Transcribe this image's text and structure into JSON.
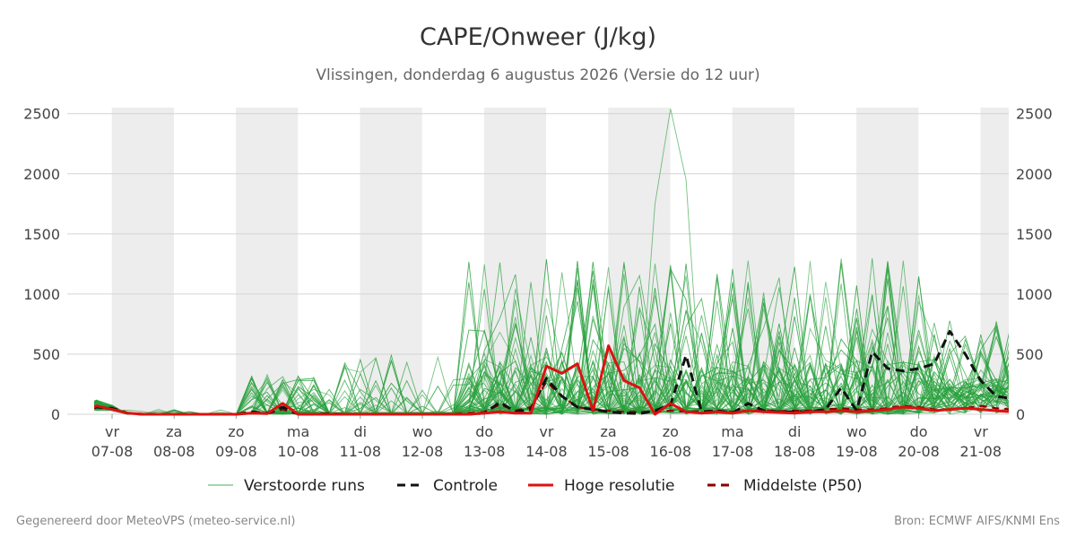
{
  "header": {
    "title": "CAPE/Onweer (J/kg)",
    "subtitle": "Vlissingen, donderdag  6 augustus 2026 (Versie do 12 uur)"
  },
  "footer": {
    "left": "Gegenereerd door MeteoVPS (meteo-service.nl)",
    "right": "Bron: ECMWF AIFS/KNMI Ens"
  },
  "legend": [
    {
      "label": "Verstoorde runs",
      "color": "#4aae5a",
      "style": "thin"
    },
    {
      "label": "Controle",
      "color": "#111111",
      "style": "dash"
    },
    {
      "label": "Hoge resolutie",
      "color": "#dd1111",
      "style": "solid"
    },
    {
      "label": "Middelste (P50)",
      "color": "#8b0000",
      "style": "dash"
    }
  ],
  "chart_data": {
    "type": "line",
    "ylim": [
      0,
      2550
    ],
    "yticks": [
      0,
      500,
      1000,
      1500,
      2000,
      2500
    ],
    "x_range_days": [
      "2026-08-06 12:00",
      "2026-08-21 12:00"
    ],
    "day_labels": [
      {
        "day": "vr",
        "date": "07-08"
      },
      {
        "day": "za",
        "date": "08-08"
      },
      {
        "day": "zo",
        "date": "09-08"
      },
      {
        "day": "ma",
        "date": "10-08"
      },
      {
        "day": "di",
        "date": "11-08"
      },
      {
        "day": "wo",
        "date": "12-08"
      },
      {
        "day": "do",
        "date": "13-08"
      },
      {
        "day": "vr",
        "date": "14-08"
      },
      {
        "day": "za",
        "date": "15-08"
      },
      {
        "day": "zo",
        "date": "16-08"
      },
      {
        "day": "ma",
        "date": "17-08"
      },
      {
        "day": "di",
        "date": "18-08"
      },
      {
        "day": "wo",
        "date": "19-08"
      },
      {
        "day": "do",
        "date": "20-08"
      },
      {
        "day": "vr",
        "date": "21-08"
      }
    ],
    "grid": true,
    "legend_position": "bottom",
    "series": [
      {
        "name": "Controle",
        "x_hours": [
          0,
          6,
          12,
          18,
          24,
          30,
          36,
          42,
          48,
          54,
          60,
          66,
          72,
          78,
          84,
          90,
          96,
          102,
          108,
          114,
          120,
          126,
          132,
          138,
          144,
          150,
          156,
          162,
          168,
          174,
          180,
          186,
          192,
          198,
          204,
          210,
          216,
          222,
          228,
          234,
          240,
          246,
          252,
          258,
          264,
          270,
          276,
          282,
          288,
          294,
          300,
          306,
          312,
          318,
          324,
          330,
          336,
          342,
          348,
          354,
          360
        ],
        "values": [
          15,
          60,
          50,
          10,
          0,
          0,
          0,
          0,
          0,
          0,
          0,
          20,
          10,
          60,
          0,
          0,
          5,
          0,
          0,
          0,
          0,
          0,
          0,
          0,
          0,
          0,
          10,
          100,
          20,
          40,
          300,
          150,
          60,
          40,
          20,
          10,
          5,
          30,
          80,
          490,
          20,
          30,
          10,
          90,
          30,
          20,
          20,
          20,
          40,
          220,
          30,
          520,
          380,
          360,
          380,
          420,
          690,
          500,
          280,
          150,
          130
        ]
      },
      {
        "name": "Hoge resolutie",
        "x_hours": [
          0,
          6,
          12,
          18,
          24,
          30,
          36,
          42,
          48,
          54,
          60,
          66,
          72,
          78,
          84,
          90,
          96,
          102,
          108,
          114,
          120,
          126,
          132,
          138,
          144,
          150,
          156,
          162,
          168,
          174,
          180,
          186,
          192,
          198,
          204,
          210,
          216,
          222,
          228,
          234,
          240,
          246,
          252,
          258,
          264,
          270,
          276,
          282,
          288,
          294,
          300,
          306,
          312,
          318,
          324,
          330,
          336,
          342,
          348,
          354,
          360
        ],
        "values": [
          20,
          70,
          40,
          10,
          0,
          0,
          0,
          0,
          0,
          0,
          0,
          10,
          5,
          90,
          0,
          0,
          0,
          0,
          0,
          0,
          0,
          0,
          0,
          0,
          0,
          0,
          10,
          20,
          10,
          10,
          400,
          340,
          420,
          30,
          570,
          280,
          220,
          0,
          90,
          20,
          10,
          20,
          10,
          30,
          20,
          15,
          10,
          20,
          20,
          30,
          20,
          30,
          40,
          60,
          50,
          30,
          40,
          50,
          40,
          30,
          20
        ]
      },
      {
        "name": "Middelste (P50)",
        "x_hours": [
          0,
          6,
          12,
          18,
          24,
          30,
          36,
          42,
          48,
          54,
          60,
          66,
          72,
          78,
          84,
          90,
          96,
          102,
          108,
          114,
          120,
          126,
          132,
          138,
          144,
          150,
          156,
          162,
          168,
          174,
          180,
          186,
          192,
          198,
          204,
          210,
          216,
          222,
          228,
          234,
          240,
          246,
          252,
          258,
          264,
          270,
          276,
          282,
          288,
          294,
          300,
          306,
          312,
          318,
          324,
          330,
          336,
          342,
          348,
          354,
          360
        ],
        "values": [
          20,
          60,
          40,
          10,
          0,
          0,
          0,
          0,
          0,
          0,
          0,
          10,
          5,
          40,
          0,
          0,
          0,
          0,
          0,
          0,
          0,
          0,
          0,
          0,
          5,
          10,
          20,
          80,
          30,
          60,
          270,
          150,
          60,
          40,
          30,
          20,
          20,
          20,
          30,
          20,
          25,
          30,
          20,
          30,
          30,
          25,
          30,
          30,
          40,
          50,
          40,
          40,
          50,
          70,
          60,
          40,
          40,
          50,
          70,
          50,
          40
        ]
      }
    ]
  }
}
